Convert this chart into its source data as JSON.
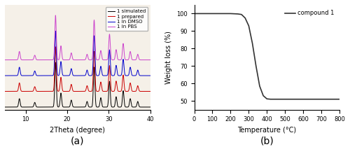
{
  "fig_width": 5.0,
  "fig_height": 2.2,
  "dpi": 100,
  "panel_a": {
    "xlabel": "2Theta (degree)",
    "xlim": [
      5,
      40
    ],
    "xticks": [
      10,
      20,
      30,
      40
    ],
    "caption": "(a)",
    "legend_labels": [
      "1 simulated",
      "1 prepared",
      "1 in DMSO",
      "1 in PBS"
    ],
    "legend_colors": [
      "#000000",
      "#cc0000",
      "#0000cc",
      "#cc44cc"
    ],
    "bg_color": "#f5f0e8",
    "peak_positions": [
      8.5,
      12.2,
      17.2,
      18.5,
      21.0,
      24.8,
      26.5,
      28.1,
      30.2,
      31.8,
      33.5,
      35.2,
      37.0
    ],
    "peak_heights_simulated": [
      0.18,
      0.1,
      0.95,
      0.3,
      0.15,
      0.12,
      0.85,
      0.2,
      0.55,
      0.22,
      0.35,
      0.18,
      0.12
    ],
    "peak_heights_prepared": [
      0.18,
      0.1,
      0.95,
      0.3,
      0.15,
      0.12,
      0.85,
      0.2,
      0.55,
      0.22,
      0.35,
      0.18,
      0.12
    ],
    "peak_heights_dmso": [
      0.18,
      0.1,
      0.95,
      0.3,
      0.15,
      0.12,
      0.85,
      0.2,
      0.55,
      0.22,
      0.35,
      0.18,
      0.12
    ],
    "peak_heights_pbs": [
      0.18,
      0.1,
      0.95,
      0.3,
      0.15,
      0.12,
      0.85,
      0.2,
      0.55,
      0.22,
      0.35,
      0.18,
      0.12
    ],
    "offsets": [
      0.0,
      0.3,
      0.6,
      0.9
    ],
    "sigma": 0.18
  },
  "panel_b": {
    "xlabel": "Temperature (°C)",
    "ylabel": "Weight loss (%)",
    "xlim": [
      0,
      800
    ],
    "ylim": [
      45,
      105
    ],
    "xticks": [
      0,
      100,
      200,
      300,
      400,
      500,
      600,
      700,
      800
    ],
    "yticks": [
      50,
      60,
      70,
      80,
      90,
      100
    ],
    "caption": "(b)",
    "legend_label": "compound 1",
    "line_color": "#333333",
    "tga_x": [
      0,
      50,
      100,
      150,
      200,
      240,
      260,
      280,
      300,
      320,
      340,
      360,
      380,
      400,
      420,
      450,
      500,
      600,
      700,
      800
    ],
    "tga_y": [
      100,
      100,
      100,
      100,
      100,
      99.8,
      99.5,
      97.5,
      93.0,
      83.0,
      70.0,
      58.5,
      53.0,
      51.2,
      51.0,
      51.0,
      51.0,
      51.0,
      51.0,
      51.0
    ]
  }
}
